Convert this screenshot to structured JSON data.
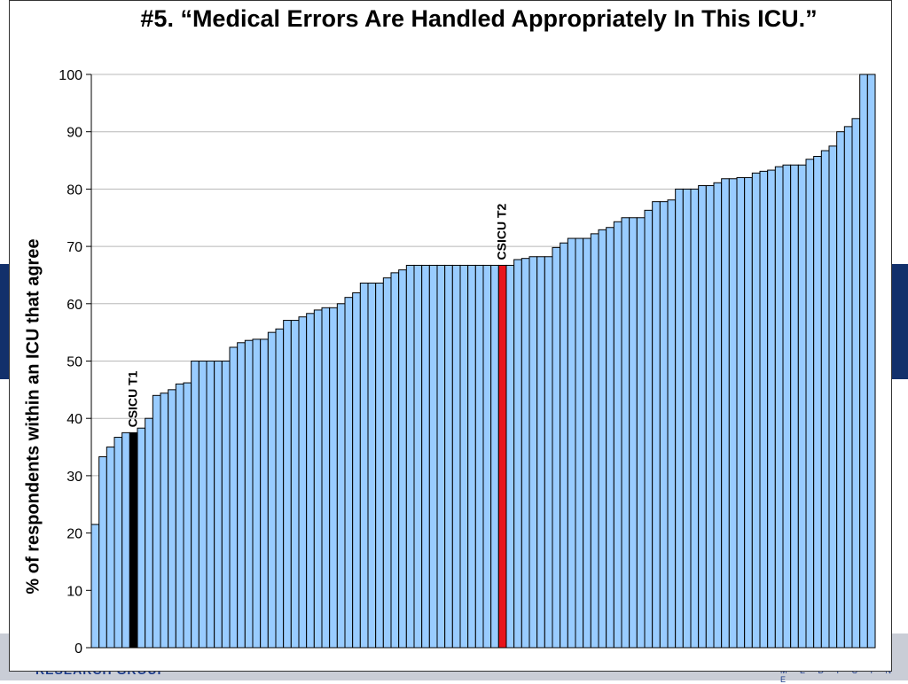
{
  "chart_data": {
    "type": "bar",
    "title": "#5.  “Medical Errors Are Handled Appropriately In This ICU.”",
    "ylabel": "% of respondents within an ICU that agree",
    "xlabel": "",
    "ylim": [
      0,
      100
    ],
    "yticks": [
      0,
      10,
      20,
      30,
      40,
      50,
      60,
      70,
      80,
      90,
      100
    ],
    "grid": true,
    "default_color": "#99ccff",
    "values": [
      21.5,
      33.3,
      35,
      36.7,
      37.5,
      37.5,
      38.3,
      40,
      44,
      44.4,
      45,
      46,
      46.2,
      50,
      50,
      50,
      50,
      50,
      52.4,
      53.2,
      53.6,
      53.8,
      53.8,
      55,
      55.6,
      57.1,
      57.1,
      57.7,
      58.3,
      58.9,
      59.3,
      59.3,
      60,
      61.1,
      61.9,
      63.6,
      63.6,
      63.6,
      64.5,
      65.4,
      65.9,
      66.7,
      66.7,
      66.7,
      66.7,
      66.7,
      66.7,
      66.7,
      66.7,
      66.7,
      66.7,
      66.7,
      66.7,
      66.7,
      66.7,
      67.7,
      67.9,
      68.2,
      68.2,
      68.2,
      69.8,
      70.6,
      71.4,
      71.4,
      71.4,
      72.2,
      72.9,
      73.3,
      74.3,
      75,
      75,
      75,
      76.3,
      77.8,
      77.8,
      78.1,
      80,
      80,
      80,
      80.6,
      80.6,
      81.1,
      81.8,
      81.8,
      82,
      82,
      82.8,
      83.1,
      83.3,
      83.9,
      84.2,
      84.2,
      84.2,
      85.2,
      85.7,
      86.7,
      87.5,
      90,
      90.9,
      92.3,
      100,
      100
    ],
    "highlights": [
      {
        "index": 5,
        "label": "CSICU T1",
        "color": "#000000"
      },
      {
        "index": 53,
        "label": "CSICU T2",
        "color": "#e8141b"
      }
    ]
  },
  "background": {
    "footer_text": "RESEARCH GROUP",
    "footer_sub": "M E D I C I N E"
  }
}
